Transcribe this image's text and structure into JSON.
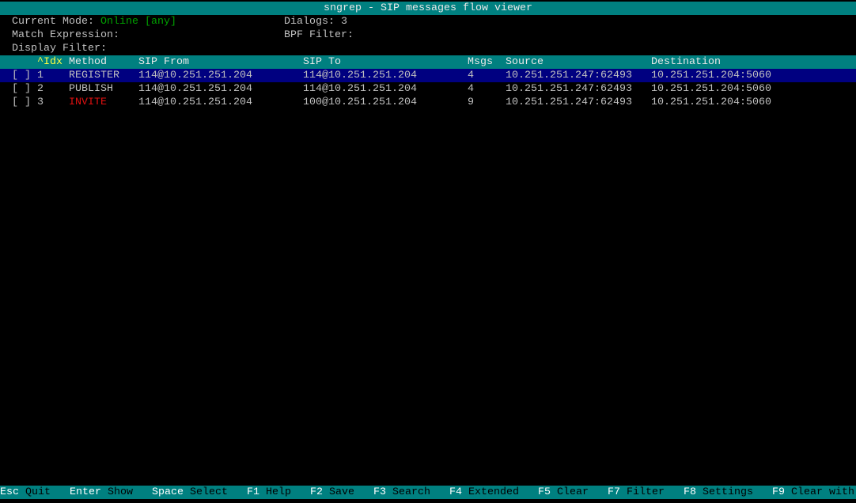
{
  "title": "sngrep - SIP messages flow viewer",
  "status": {
    "mode_label": "Current Mode:",
    "mode_value": "Online [any]",
    "dialogs_label": "Dialogs:",
    "dialogs_value": "3",
    "match_label": "Match Expression:",
    "bpf_label": "BPF Filter:",
    "display_label": "Display Filter:"
  },
  "table": {
    "columns": [
      "^Idx",
      "Method",
      "SIP From",
      "SIP To",
      "Msgs",
      "Source",
      "Destination"
    ],
    "rows": [
      {
        "check": "[ ]",
        "idx": "1",
        "method": "REGISTER",
        "from": "114@10.251.251.204",
        "to": "114@10.251.251.204",
        "msgs": "4",
        "source": "10.251.251.247:62493",
        "destination": "10.251.251.204:5060",
        "selected": true
      },
      {
        "check": "[ ]",
        "idx": "2",
        "method": "PUBLISH",
        "from": "114@10.251.251.204",
        "to": "114@10.251.251.204",
        "msgs": "4",
        "source": "10.251.251.247:62493",
        "destination": "10.251.251.204:5060"
      },
      {
        "check": "[ ]",
        "idx": "3",
        "method": "INVITE",
        "from": "114@10.251.251.204",
        "to": "100@10.251.251.204",
        "msgs": "9",
        "source": "10.251.251.247:62493",
        "destination": "10.251.251.204:5060",
        "method_color": "#e01010"
      }
    ]
  },
  "footer": [
    {
      "key": "Esc",
      "label": "Quit"
    },
    {
      "key": "Enter",
      "label": "Show"
    },
    {
      "key": "Space",
      "label": "Select"
    },
    {
      "key": "F1",
      "label": "Help"
    },
    {
      "key": "F2",
      "label": "Save"
    },
    {
      "key": "F3",
      "label": "Search"
    },
    {
      "key": "F4",
      "label": "Extended"
    },
    {
      "key": "F5",
      "label": "Clear"
    },
    {
      "key": "F7",
      "label": "Filter"
    },
    {
      "key": "F8",
      "label": "Settings"
    },
    {
      "key": "F9",
      "label": "Clear with"
    }
  ],
  "colors": {
    "bar": "#008080",
    "selection": "#000080",
    "online": "#00a000",
    "sort": "#ffff40",
    "invite": "#e01010"
  }
}
